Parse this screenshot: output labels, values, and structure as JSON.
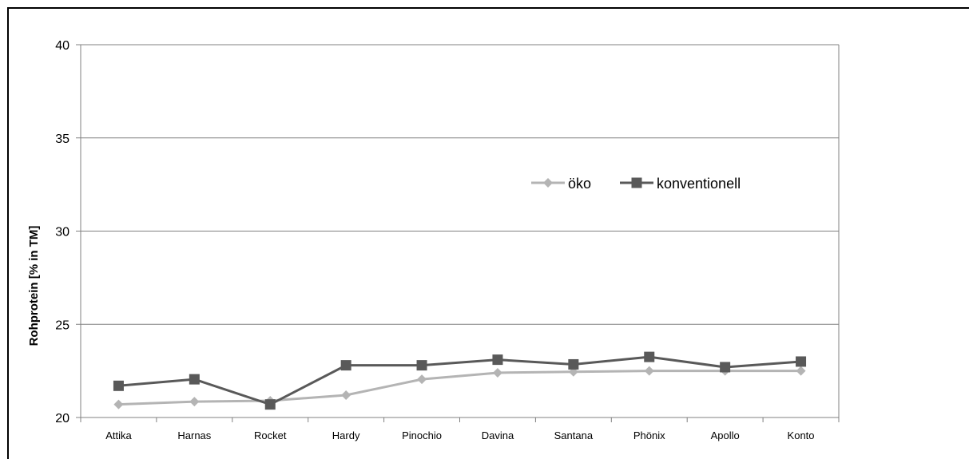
{
  "chart_data": {
    "type": "line",
    "title": "",
    "xlabel": "",
    "ylabel": "Rohprotein [% in TM]",
    "ylim": [
      20,
      40
    ],
    "yticks": [
      20,
      25,
      30,
      35,
      40
    ],
    "grid": true,
    "legend_position": "center-right",
    "categories": [
      "Attika",
      "Harnas",
      "Rocket",
      "Hardy",
      "Pinochio",
      "Davina",
      "Santana",
      "Phönix",
      "Apollo",
      "Konto"
    ],
    "series": [
      {
        "name": "öko",
        "color": "#b4b4b4",
        "marker": "diamond",
        "values": [
          20.7,
          20.85,
          20.9,
          21.2,
          22.05,
          22.4,
          22.45,
          22.5,
          22.5,
          22.5
        ]
      },
      {
        "name": "konventionell",
        "color": "#595959",
        "marker": "square",
        "values": [
          21.7,
          22.05,
          20.7,
          22.8,
          22.8,
          23.1,
          22.85,
          23.25,
          22.7,
          23.0
        ]
      }
    ]
  }
}
